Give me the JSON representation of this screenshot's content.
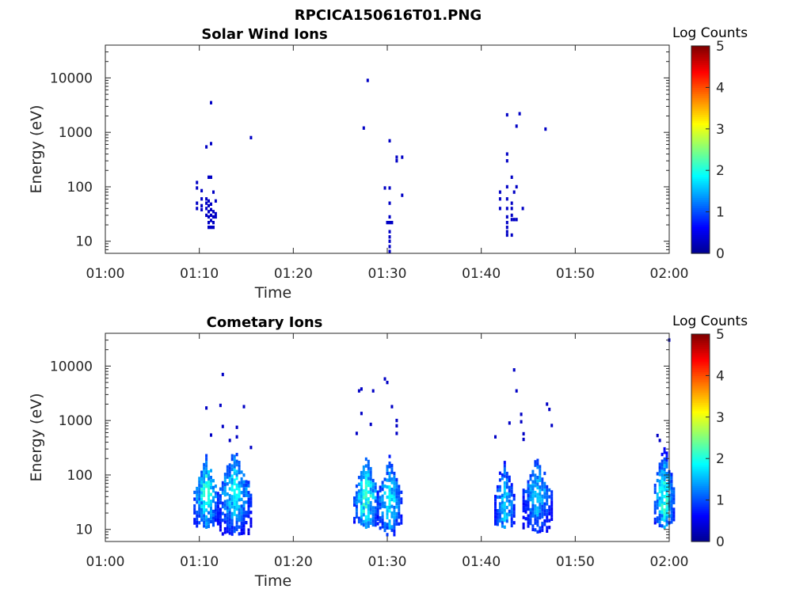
{
  "figure_title": "RPCICA150616T01.PNG",
  "colors": {
    "colormap": [
      "#00008f",
      "#0000ff",
      "#0080ff",
      "#00ffff",
      "#80ff80",
      "#ffff00",
      "#ff8000",
      "#ff0000",
      "#800000"
    ]
  },
  "chart_data": [
    {
      "type": "heatmap",
      "title": "Solar Wind Ions",
      "xlabel": "Time",
      "ylabel": "Energy (eV)",
      "xlim": [
        "01:00",
        "02:00"
      ],
      "xticks": [
        "01:00",
        "01:10",
        "01:20",
        "01:30",
        "01:40",
        "01:50",
        "02:00"
      ],
      "ylim": [
        6,
        40000
      ],
      "yscale": "log",
      "yticks": [
        "10",
        "100",
        "1000",
        "10000"
      ],
      "colorbar": {
        "label": "Log Counts",
        "range": [
          0,
          5
        ],
        "ticks": [
          "0",
          "1",
          "2",
          "3",
          "4",
          "5"
        ]
      },
      "cells": [
        [
          "01:09:45",
          120,
          0.3
        ],
        [
          "01:09:45",
          95,
          0.3
        ],
        [
          "01:09:45",
          50,
          0.3
        ],
        [
          "01:09:45",
          40,
          0.3
        ],
        [
          "01:10:15",
          85,
          0.3
        ],
        [
          "01:10:15",
          60,
          0.3
        ],
        [
          "01:10:15",
          45,
          0.3
        ],
        [
          "01:10:15",
          38,
          0.3
        ],
        [
          "01:10:45",
          60,
          0.3
        ],
        [
          "01:10:45",
          50,
          0.3
        ],
        [
          "01:10:45",
          40,
          0.3
        ],
        [
          "01:10:45",
          30,
          0.3
        ],
        [
          "01:11:00",
          55,
          0.3
        ],
        [
          "01:11:00",
          45,
          0.3
        ],
        [
          "01:11:00",
          35,
          0.3
        ],
        [
          "01:11:00",
          28,
          0.3
        ],
        [
          "01:11:00",
          22,
          0.3
        ],
        [
          "01:11:00",
          18,
          0.3
        ],
        [
          "01:11:15",
          48,
          0.3
        ],
        [
          "01:11:15",
          38,
          0.3
        ],
        [
          "01:11:15",
          30,
          0.3
        ],
        [
          "01:11:15",
          24,
          0.3
        ],
        [
          "01:11:15",
          18,
          0.3
        ],
        [
          "01:11:30",
          80,
          0.3
        ],
        [
          "01:11:30",
          35,
          0.3
        ],
        [
          "01:11:30",
          28,
          0.3
        ],
        [
          "01:11:30",
          22,
          0.3
        ],
        [
          "01:11:30",
          18,
          0.3
        ],
        [
          "01:11:45",
          55,
          0.3
        ],
        [
          "01:11:45",
          32,
          0.3
        ],
        [
          "01:11:45",
          28,
          0.3
        ],
        [
          "01:11:00",
          150,
          0.3
        ],
        [
          "01:11:15",
          150,
          0.3
        ],
        [
          "01:10:45",
          540,
          0.3
        ],
        [
          "01:11:15",
          620,
          0.3
        ],
        [
          "01:11:15",
          3500,
          0.3
        ],
        [
          "01:15:30",
          800,
          0.3
        ],
        [
          "01:27:30",
          1200,
          0.3
        ],
        [
          "01:27:55",
          9000,
          0.3
        ],
        [
          "01:29:45",
          95,
          0.3
        ],
        [
          "01:30:15",
          95,
          0.3
        ],
        [
          "01:30:15",
          50,
          0.3
        ],
        [
          "01:30:00",
          22,
          0.3
        ],
        [
          "01:30:15",
          22,
          0.3
        ],
        [
          "01:30:30",
          22,
          0.3
        ],
        [
          "01:30:15",
          28,
          0.3
        ],
        [
          "01:30:15",
          15,
          0.3
        ],
        [
          "01:30:15",
          12,
          0.3
        ],
        [
          "01:30:15",
          10,
          0.3
        ],
        [
          "01:30:15",
          8,
          0.3
        ],
        [
          "01:30:15",
          6.5,
          0.3
        ],
        [
          "01:30:15",
          700,
          0.3
        ],
        [
          "01:31:00",
          350,
          0.3
        ],
        [
          "01:31:00",
          300,
          0.3
        ],
        [
          "01:31:35",
          350,
          0.3
        ],
        [
          "01:31:35",
          70,
          0.3
        ],
        [
          "01:42:00",
          80,
          0.3
        ],
        [
          "01:42:00",
          60,
          0.3
        ],
        [
          "01:42:00",
          40,
          0.3
        ],
        [
          "01:42:45",
          400,
          0.3
        ],
        [
          "01:42:45",
          300,
          0.3
        ],
        [
          "01:42:45",
          100,
          0.3
        ],
        [
          "01:42:45",
          60,
          0.3
        ],
        [
          "01:42:45",
          40,
          0.3
        ],
        [
          "01:42:45",
          28,
          0.3
        ],
        [
          "01:42:45",
          22,
          0.3
        ],
        [
          "01:42:45",
          18,
          0.3
        ],
        [
          "01:42:45",
          15,
          0.3
        ],
        [
          "01:42:45",
          13,
          0.3
        ],
        [
          "01:43:15",
          150,
          0.3
        ],
        [
          "01:43:15",
          50,
          0.3
        ],
        [
          "01:43:15",
          40,
          0.3
        ],
        [
          "01:43:15",
          30,
          0.3
        ],
        [
          "01:43:15",
          25,
          0.3
        ],
        [
          "01:43:15",
          13,
          0.3
        ],
        [
          "01:43:30",
          80,
          0.3
        ],
        [
          "01:43:30",
          25,
          0.3
        ],
        [
          "01:43:45",
          100,
          0.3
        ],
        [
          "01:43:45",
          25,
          0.3
        ],
        [
          "01:42:45",
          2100,
          0.3
        ],
        [
          "01:44:05",
          2200,
          0.3
        ],
        [
          "01:43:45",
          1300,
          0.3
        ],
        [
          "01:44:25",
          40,
          0.3
        ],
        [
          "01:46:50",
          1150,
          0.3
        ]
      ]
    },
    {
      "type": "heatmap",
      "title": "Cometary Ions",
      "xlabel": "Time",
      "ylabel": "Energy (eV)",
      "xlim": [
        "01:00",
        "02:00"
      ],
      "xticks": [
        "01:00",
        "01:10",
        "01:20",
        "01:30",
        "01:40",
        "01:50",
        "02:00"
      ],
      "ylim": [
        6,
        40000
      ],
      "yscale": "log",
      "yticks": [
        "10",
        "100",
        "1000",
        "10000"
      ],
      "colorbar": {
        "label": "Log Counts",
        "range": [
          0,
          5
        ],
        "ticks": [
          "0",
          "1",
          "2",
          "3",
          "4",
          "5"
        ]
      },
      "bursts": [
        {
          "start": "01:09:30",
          "end": "01:12:00",
          "emin": 11,
          "emax": 250,
          "epeak": 45,
          "peak": 2.1
        },
        {
          "start": "01:12:00",
          "end": "01:15:30",
          "emin": 8,
          "emax": 320,
          "epeak": 50,
          "peak": 1.9
        },
        {
          "start": "01:26:30",
          "end": "01:29:00",
          "emin": 11,
          "emax": 280,
          "epeak": 40,
          "peak": 2.2
        },
        {
          "start": "01:29:00",
          "end": "01:31:30",
          "emin": 8,
          "emax": 260,
          "epeak": 35,
          "peak": 1.9
        },
        {
          "start": "01:41:30",
          "end": "01:43:30",
          "emin": 11,
          "emax": 230,
          "epeak": 30,
          "peak": 1.7
        },
        {
          "start": "01:44:30",
          "end": "01:47:30",
          "emin": 9,
          "emax": 250,
          "epeak": 45,
          "peak": 1.6
        },
        {
          "start": "01:58:30",
          "end": "02:00:30",
          "emin": 11,
          "emax": 500,
          "epeak": 40,
          "peak": 2.2
        }
      ],
      "cells": [
        [
          "01:14:00",
          750,
          0.3
        ],
        [
          "01:14:00",
          500,
          0.3
        ],
        [
          "01:13:15",
          430,
          0.3
        ],
        [
          "01:11:15",
          540,
          0.3
        ],
        [
          "01:12:30",
          780,
          0.3
        ],
        [
          "01:10:45",
          1700,
          0.3
        ],
        [
          "01:12:15",
          1900,
          0.3
        ],
        [
          "01:14:45",
          1800,
          0.3
        ],
        [
          "01:12:30",
          7000,
          0.3
        ],
        [
          "01:15:30",
          320,
          0.3
        ],
        [
          "01:27:00",
          3500,
          0.3
        ],
        [
          "01:27:15",
          3800,
          0.3
        ],
        [
          "01:28:30",
          3500,
          0.3
        ],
        [
          "01:29:45",
          5800,
          0.3
        ],
        [
          "01:30:00",
          5000,
          0.3
        ],
        [
          "01:31:00",
          1000,
          0.3
        ],
        [
          "01:31:00",
          800,
          0.3
        ],
        [
          "01:31:00",
          580,
          0.3
        ],
        [
          "01:30:30",
          1800,
          0.3
        ],
        [
          "01:27:15",
          1350,
          0.3
        ],
        [
          "01:28:15",
          850,
          0.3
        ],
        [
          "01:26:45",
          580,
          0.3
        ],
        [
          "01:43:30",
          8500,
          0.3
        ],
        [
          "01:43:45",
          3500,
          0.3
        ],
        [
          "01:44:15",
          1300,
          0.3
        ],
        [
          "01:44:15",
          950,
          0.3
        ],
        [
          "01:43:00",
          900,
          0.3
        ],
        [
          "01:44:30",
          570,
          0.3
        ],
        [
          "01:44:30",
          450,
          0.3
        ],
        [
          "01:41:30",
          500,
          0.3
        ],
        [
          "01:47:00",
          2000,
          0.3
        ],
        [
          "01:47:15",
          1600,
          0.3
        ],
        [
          "01:47:30",
          810,
          0.3
        ],
        [
          "01:58:45",
          530,
          0.3
        ],
        [
          "01:59:00",
          430,
          0.3
        ],
        [
          "02:00:00",
          30000,
          0.3
        ],
        [
          "01:43:00",
          40,
          1.2
        ],
        [
          "01:45:30",
          60,
          1.3
        ]
      ]
    }
  ]
}
